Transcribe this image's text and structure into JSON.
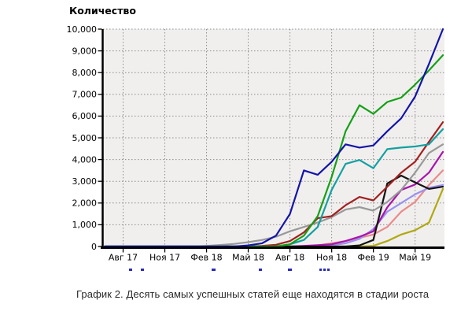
{
  "figure": {
    "title": "Количество",
    "caption": "График 2. Десять самых успешных статей еще находятся в стадии роста"
  },
  "chart_data": {
    "type": "line",
    "title": "Количество",
    "x_axis": {
      "tick_labels": [
        "Авг 17",
        "Ноя 17",
        "Фев 18",
        "Май 18",
        "Авг 18",
        "Ноя 18",
        "Фев 19",
        "Май 19"
      ],
      "tick_point_indices": [
        1,
        4,
        7,
        10,
        13,
        16,
        19,
        22
      ],
      "n_points": 25,
      "point_unit": "month"
    },
    "y_axis": {
      "label": "Количество",
      "min": 0,
      "max": 10000,
      "tick_step": 1000,
      "tick_labels": [
        "0",
        "1,000",
        "2,000",
        "3,000",
        "4,000",
        "5,000",
        "6,000",
        "7,000",
        "8,000",
        "9,000",
        "10,000"
      ]
    },
    "grid": "dotted",
    "legend_visible": false,
    "series": [
      {
        "name": "olive",
        "color": "#b0a810",
        "values": [
          0,
          0,
          0,
          0,
          0,
          0,
          0,
          0,
          0,
          0,
          0,
          0,
          0,
          0,
          0,
          0,
          0,
          0,
          0,
          30,
          250,
          550,
          750,
          1100,
          2650
        ]
      },
      {
        "name": "salmon",
        "color": "#ea8a8a",
        "values": [
          0,
          0,
          0,
          0,
          0,
          0,
          0,
          0,
          0,
          0,
          0,
          0,
          0,
          0,
          0,
          50,
          150,
          250,
          400,
          550,
          900,
          1600,
          2050,
          2830,
          3500
        ]
      },
      {
        "name": "light-purple",
        "color": "#9a8ff0",
        "values": [
          0,
          0,
          0,
          0,
          0,
          0,
          0,
          0,
          0,
          0,
          0,
          0,
          0,
          0,
          0,
          0,
          50,
          150,
          350,
          800,
          1600,
          2000,
          2400,
          2700,
          2830
        ]
      },
      {
        "name": "magenta",
        "color": "#aa14aa",
        "values": [
          0,
          0,
          0,
          0,
          0,
          0,
          0,
          0,
          0,
          0,
          0,
          0,
          0,
          0,
          30,
          60,
          100,
          250,
          450,
          700,
          1800,
          2600,
          2850,
          3400,
          4350
        ]
      },
      {
        "name": "black",
        "color": "#141414",
        "values": [
          0,
          0,
          0,
          0,
          0,
          0,
          0,
          0,
          0,
          0,
          0,
          0,
          0,
          0,
          0,
          0,
          0,
          0,
          50,
          300,
          2900,
          3260,
          2950,
          2650,
          2750
        ]
      },
      {
        "name": "gray",
        "color": "#999999",
        "values": [
          0,
          0,
          0,
          0,
          0,
          0,
          0,
          30,
          70,
          120,
          200,
          300,
          450,
          700,
          900,
          1100,
          1350,
          1700,
          1810,
          1650,
          2050,
          2600,
          3400,
          4300,
          4700
        ]
      },
      {
        "name": "dark-red",
        "color": "#a22020",
        "values": [
          0,
          0,
          0,
          0,
          0,
          0,
          0,
          0,
          0,
          0,
          0,
          30,
          80,
          250,
          650,
          1300,
          1400,
          1900,
          2280,
          2120,
          2750,
          3400,
          3900,
          4820,
          5720
        ]
      },
      {
        "name": "teal",
        "color": "#14a0a0",
        "values": [
          0,
          0,
          0,
          0,
          0,
          0,
          0,
          0,
          0,
          0,
          0,
          0,
          0,
          100,
          300,
          900,
          2600,
          3800,
          3980,
          3600,
          4480,
          4550,
          4600,
          4700,
          5400
        ]
      },
      {
        "name": "green",
        "color": "#16a016",
        "values": [
          0,
          0,
          0,
          0,
          0,
          0,
          0,
          0,
          0,
          0,
          0,
          0,
          0,
          100,
          500,
          1400,
          3200,
          5300,
          6500,
          6100,
          6650,
          6850,
          7450,
          8100,
          8800
        ]
      },
      {
        "name": "dark-blue",
        "color": "#1414a8",
        "values": [
          0,
          0,
          0,
          0,
          0,
          0,
          0,
          0,
          0,
          0,
          50,
          150,
          500,
          1500,
          3500,
          3300,
          3900,
          4700,
          4550,
          4650,
          5300,
          5900,
          6900,
          8400,
          10000
        ]
      }
    ],
    "colors": {
      "plot_background": "#f0efee",
      "axis": "#000000",
      "gridline": "#8c8c8c",
      "clipped_legend_marks": "#2b2bb8"
    }
  },
  "clipped_legend_fragments": [
    {
      "x": 164,
      "w": 4
    },
    {
      "x": 179,
      "w": 4
    },
    {
      "x": 269,
      "w": 5
    },
    {
      "x": 329,
      "w": 4
    },
    {
      "x": 366,
      "w": 5
    },
    {
      "x": 406,
      "w": 3
    },
    {
      "x": 411,
      "w": 3
    },
    {
      "x": 416,
      "w": 3
    }
  ]
}
